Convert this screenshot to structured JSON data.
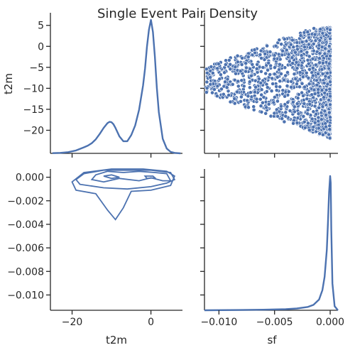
{
  "figure": {
    "title": "Single Event Pair Density"
  },
  "chart_data": {
    "type": "pairgrid",
    "variables": [
      "t2m",
      "sf"
    ],
    "axis_labels": {
      "t2m": "t2m",
      "sf": "sf"
    },
    "ranges": {
      "t2m": [
        -25.5,
        8.0
      ],
      "sf": [
        -0.0113,
        0.0007
      ]
    },
    "ticks": {
      "t2m": [
        -20,
        0
      ],
      "t2m_labels": [
        "−20",
        "0"
      ],
      "t2m_y": [
        -20,
        -15,
        -10,
        -5,
        0,
        5
      ],
      "t2m_y_labels": [
        "−20",
        "−15",
        "−10",
        "−5",
        "0",
        "5"
      ],
      "sf_x": [
        -0.01,
        -0.005,
        0.0
      ],
      "sf_x_labels": [
        "−0.010",
        "−0.005",
        "0.000"
      ],
      "sf_y": [
        -0.01,
        -0.008,
        -0.006,
        -0.004,
        -0.002,
        0.0
      ],
      "sf_y_labels": [
        "−0.010",
        "−0.008",
        "−0.006",
        "−0.004",
        "−0.002",
        "0.000"
      ]
    },
    "t2m_kde": {
      "x": [
        -25,
        -23,
        -21,
        -19,
        -17,
        -16,
        -15,
        -14,
        -13,
        -12,
        -11,
        -10.5,
        -10,
        -9.5,
        -9,
        -8,
        -7,
        -6,
        -5,
        -4,
        -3,
        -2,
        -1.5,
        -1,
        -0.5,
        0,
        0.5,
        1,
        1.5,
        2,
        3,
        4,
        5,
        6,
        7.5
      ],
      "density": [
        0.001,
        0.002,
        0.005,
        0.012,
        0.025,
        0.032,
        0.042,
        0.058,
        0.08,
        0.105,
        0.125,
        0.13,
        0.128,
        0.12,
        0.105,
        0.07,
        0.05,
        0.05,
        0.075,
        0.115,
        0.18,
        0.28,
        0.35,
        0.44,
        0.51,
        0.55,
        0.5,
        0.4,
        0.27,
        0.17,
        0.06,
        0.02,
        0.006,
        0.002,
        0.0
      ]
    },
    "sf_kde": {
      "x": [
        -0.0113,
        -0.008,
        -0.006,
        -0.004,
        -0.003,
        -0.002,
        -0.0015,
        -0.001,
        -0.0007,
        -0.0005,
        -0.0003,
        -0.0002,
        -0.0001,
        0.0,
        5e-05,
        0.0001,
        0.0002,
        0.0004,
        0.0007
      ],
      "density": [
        0.0,
        0.002,
        0.004,
        0.008,
        0.013,
        0.025,
        0.04,
        0.08,
        0.15,
        0.25,
        0.45,
        0.65,
        0.88,
        1.0,
        0.95,
        0.6,
        0.2,
        0.03,
        0.0
      ]
    },
    "scatter": {
      "seed": 7,
      "count": 1800,
      "x_range": [
        -0.0113,
        0.0
      ],
      "y_range": [
        -22.5,
        4.5
      ]
    },
    "contour_levels": [
      [
        [
          -12,
          -0.0004
        ],
        [
          -8,
          -0.0001
        ],
        [
          -3,
          -0.0003
        ],
        [
          0,
          -5e-05
        ],
        [
          3,
          -0.0003
        ],
        [
          5,
          -0.0003
        ],
        [
          4,
          0.0003
        ],
        [
          1,
          0.0004
        ],
        [
          -3,
          0.0005
        ],
        [
          -7,
          0.0004
        ],
        [
          -11,
          0.0005
        ],
        [
          -14,
          0.0002
        ],
        [
          -15,
          -0.0002
        ]
      ],
      [
        [
          -18,
          -0.0006
        ],
        [
          -12,
          -0.0009
        ],
        [
          -6,
          -0.001
        ],
        [
          0,
          -0.0008
        ],
        [
          4,
          -0.0005
        ],
        [
          6,
          -0.0002
        ],
        [
          5,
          0.0004
        ],
        [
          0,
          0.0006
        ],
        [
          -6,
          0.0006
        ],
        [
          -12,
          0.0006
        ],
        [
          -17,
          0.0003
        ],
        [
          -19,
          -0.0002
        ]
      ],
      [
        [
          -19,
          -0.0011
        ],
        [
          -14,
          -0.0014
        ],
        [
          -11,
          -0.0028
        ],
        [
          -9,
          -0.0036
        ],
        [
          -7,
          -0.0026
        ],
        [
          -5,
          -0.0012
        ],
        [
          0,
          -0.0011
        ],
        [
          5,
          -0.0007
        ],
        [
          6,
          0.0001
        ],
        [
          4,
          0.0005
        ],
        [
          -2,
          0.0007
        ],
        [
          -10,
          0.0007
        ],
        [
          -17,
          0.0004
        ],
        [
          -20,
          -0.0004
        ]
      ],
      [
        [
          -10,
          -0.0001
        ],
        [
          -8,
          0.0
        ],
        [
          -10,
          0.0002
        ],
        [
          -12,
          0.0001
        ]
      ],
      [
        [
          -1,
          -0.0001
        ],
        [
          1,
          -5e-05
        ],
        [
          0.5,
          0.0001
        ],
        [
          -1.5,
          0.0001
        ]
      ]
    ],
    "grid": false,
    "legend": "none"
  }
}
